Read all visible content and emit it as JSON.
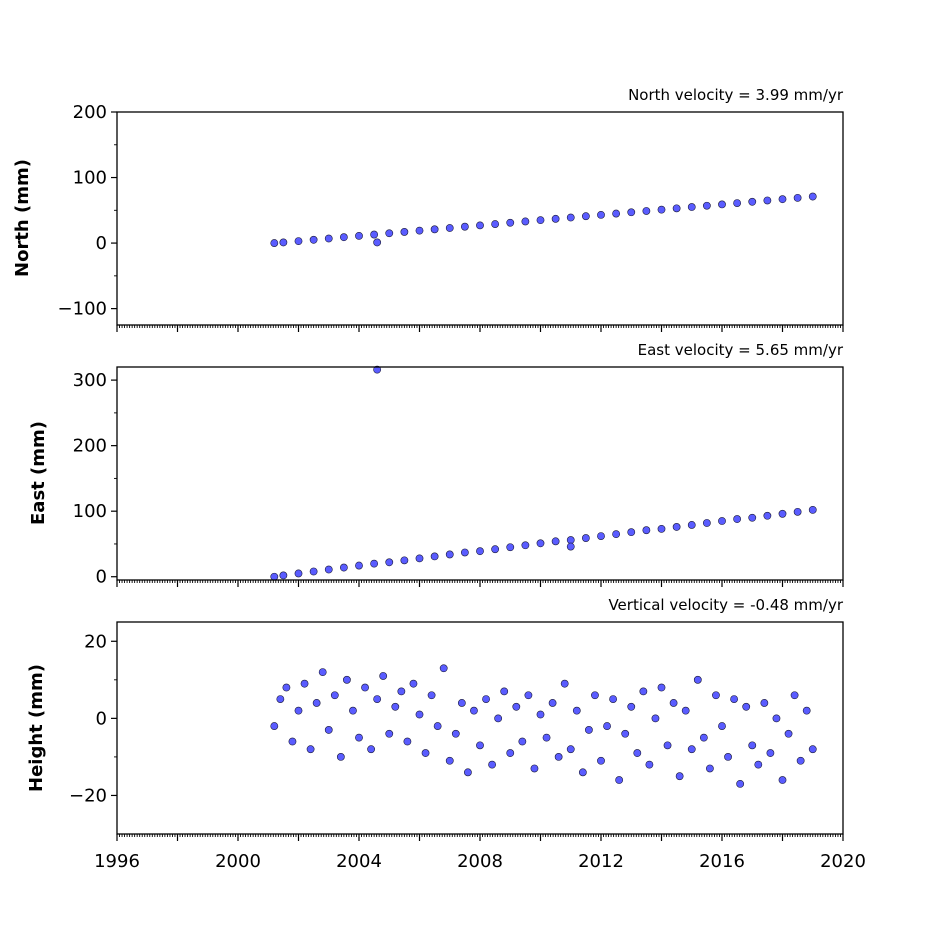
{
  "chart_data": [
    {
      "type": "scatter",
      "title": "North velocity = 3.99 mm/yr",
      "ylabel": "North (mm)",
      "xlabel": "",
      "xlim": [
        1996,
        2020
      ],
      "ylim": [
        -125,
        200
      ],
      "yticks": [
        -100,
        0,
        100,
        200
      ],
      "ytick_labels": [
        "−100",
        "0",
        "100",
        "200"
      ],
      "series": [
        {
          "x": [
            2001.2,
            2001.5,
            2002.0,
            2002.5,
            2003.0,
            2003.5,
            2004.0,
            2004.5,
            2005.0,
            2005.5,
            2006.0,
            2006.5,
            2007.0,
            2007.5,
            2008.0,
            2008.5,
            2009.0,
            2009.5,
            2010.0,
            2010.5,
            2011.0,
            2011.5,
            2012.0,
            2012.5,
            2013.0,
            2013.5,
            2014.0,
            2014.5,
            2015.0,
            2015.5,
            2016.0,
            2016.5,
            2017.0,
            2017.5,
            2018.0,
            2018.5,
            2019.0,
            2004.6
          ],
          "y": [
            0,
            1,
            3,
            5,
            7,
            9,
            11,
            13,
            15,
            17,
            19,
            21,
            23,
            25,
            27,
            29,
            31,
            33,
            35,
            37,
            39,
            41,
            43,
            45,
            47,
            49,
            51,
            53,
            55,
            57,
            59,
            61,
            63,
            65,
            67,
            69,
            71,
            1
          ]
        }
      ]
    },
    {
      "type": "scatter",
      "title": "East velocity = 5.65 mm/yr",
      "ylabel": "East (mm)",
      "xlabel": "",
      "xlim": [
        1996,
        2020
      ],
      "ylim": [
        -5,
        320
      ],
      "yticks": [
        0,
        100,
        200,
        300
      ],
      "ytick_labels": [
        "0",
        "100",
        "200",
        "300"
      ],
      "series": [
        {
          "x": [
            2001.2,
            2001.5,
            2002.0,
            2002.5,
            2003.0,
            2003.5,
            2004.0,
            2004.5,
            2005.0,
            2005.5,
            2006.0,
            2006.5,
            2007.0,
            2007.5,
            2008.0,
            2008.5,
            2009.0,
            2009.5,
            2010.0,
            2010.5,
            2011.0,
            2011.5,
            2012.0,
            2012.5,
            2013.0,
            2013.5,
            2014.0,
            2014.5,
            2015.0,
            2015.5,
            2016.0,
            2016.5,
            2017.0,
            2017.5,
            2018.0,
            2018.5,
            2019.0,
            2004.6,
            2011.0
          ],
          "y": [
            0,
            2,
            5,
            8,
            11,
            14,
            17,
            20,
            22,
            25,
            28,
            31,
            34,
            37,
            39,
            42,
            45,
            48,
            51,
            54,
            56,
            59,
            62,
            65,
            68,
            71,
            73,
            76,
            79,
            82,
            85,
            88,
            90,
            93,
            96,
            99,
            102,
            316,
            46
          ]
        }
      ]
    },
    {
      "type": "scatter",
      "title": "Vertical velocity = -0.48 mm/yr",
      "ylabel": "Height (mm)",
      "xlabel": "",
      "xlim": [
        1996,
        2020
      ],
      "ylim": [
        -30,
        25
      ],
      "yticks": [
        -20,
        0,
        20
      ],
      "ytick_labels": [
        "−20",
        "0",
        "20"
      ],
      "xticks": [
        1996,
        2000,
        2004,
        2008,
        2012,
        2016,
        2020
      ],
      "xtick_labels": [
        "1996",
        "2000",
        "2004",
        "2008",
        "2012",
        "2016",
        "2020"
      ],
      "series": [
        {
          "x": [
            2001.2,
            2001.4,
            2001.6,
            2001.8,
            2002.0,
            2002.2,
            2002.4,
            2002.6,
            2002.8,
            2003.0,
            2003.2,
            2003.4,
            2003.6,
            2003.8,
            2004.0,
            2004.2,
            2004.4,
            2004.6,
            2004.8,
            2005.0,
            2005.2,
            2005.4,
            2005.6,
            2005.8,
            2006.0,
            2006.2,
            2006.4,
            2006.6,
            2006.8,
            2007.0,
            2007.2,
            2007.4,
            2007.6,
            2007.8,
            2008.0,
            2008.2,
            2008.4,
            2008.6,
            2008.8,
            2009.0,
            2009.2,
            2009.4,
            2009.6,
            2009.8,
            2010.0,
            2010.2,
            2010.4,
            2010.6,
            2010.8,
            2011.0,
            2011.2,
            2011.4,
            2011.6,
            2011.8,
            2012.0,
            2012.2,
            2012.4,
            2012.6,
            2012.8,
            2013.0,
            2013.2,
            2013.4,
            2013.6,
            2013.8,
            2014.0,
            2014.2,
            2014.4,
            2014.6,
            2014.8,
            2015.0,
            2015.2,
            2015.4,
            2015.6,
            2015.8,
            2016.0,
            2016.2,
            2016.4,
            2016.6,
            2016.8,
            2017.0,
            2017.2,
            2017.4,
            2017.6,
            2017.8,
            2018.0,
            2018.2,
            2018.4,
            2018.6,
            2018.8,
            2019.0
          ],
          "y": [
            -2,
            5,
            8,
            -6,
            2,
            9,
            -8,
            4,
            12,
            -3,
            6,
            -10,
            10,
            2,
            -5,
            8,
            -8,
            5,
            11,
            -4,
            3,
            7,
            -6,
            9,
            1,
            -9,
            6,
            -2,
            13,
            -11,
            -4,
            4,
            -14,
            2,
            -7,
            5,
            -12,
            0,
            7,
            -9,
            3,
            -6,
            6,
            -13,
            1,
            -5,
            4,
            -10,
            9,
            -8,
            2,
            -14,
            -3,
            6,
            -11,
            -2,
            5,
            -16,
            -4,
            3,
            -9,
            7,
            -12,
            0,
            8,
            -7,
            4,
            -15,
            2,
            -8,
            10,
            -5,
            -13,
            6,
            -2,
            -10,
            5,
            -17,
            3,
            -7,
            -12,
            4,
            -9,
            0,
            -16,
            -4,
            6,
            -11,
            2,
            -8
          ]
        }
      ]
    }
  ]
}
